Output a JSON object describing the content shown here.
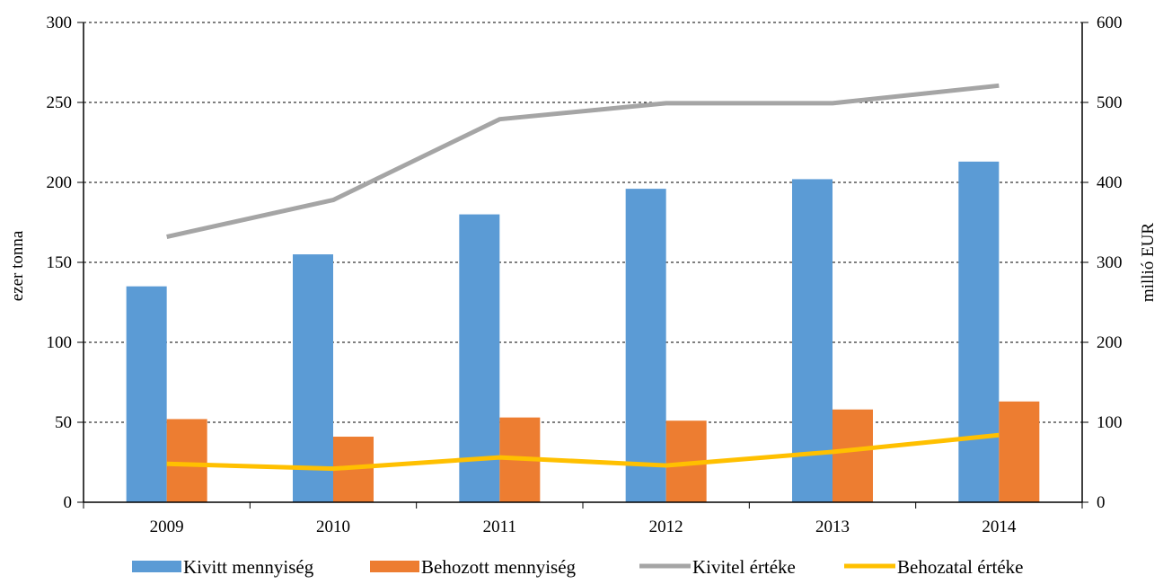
{
  "chart_data": {
    "type": "bar",
    "categories": [
      "2009",
      "2010",
      "2011",
      "2012",
      "2013",
      "2014"
    ],
    "series": [
      {
        "name": "Kivitt mennyiség",
        "type": "bar",
        "axis": "left",
        "color": "#5B9BD5",
        "values": [
          135,
          155,
          180,
          196,
          202,
          213
        ]
      },
      {
        "name": "Behozott mennyiség",
        "type": "bar",
        "axis": "left",
        "color": "#ED7D31",
        "values": [
          52,
          41,
          53,
          51,
          58,
          63
        ]
      },
      {
        "name": "Kivitel értéke",
        "type": "line",
        "axis": "right",
        "color": "#A5A5A5",
        "values": [
          332,
          378,
          479,
          499,
          499,
          521
        ]
      },
      {
        "name": "Behozatal értéke",
        "type": "line",
        "axis": "right",
        "color": "#FFC000",
        "values": [
          48,
          42,
          56,
          46,
          63,
          84
        ]
      }
    ],
    "ylabel": "ezer tonna",
    "y2label": "millió EUR",
    "ylim": [
      0,
      300
    ],
    "y2lim": [
      0,
      600
    ],
    "yticks": [
      "0",
      "50",
      "100",
      "150",
      "200",
      "250",
      "300"
    ],
    "y2ticks": [
      "0",
      "100",
      "200",
      "300",
      "400",
      "500",
      "600"
    ],
    "grid": "dashed horizontal",
    "legend_position": "bottom"
  }
}
